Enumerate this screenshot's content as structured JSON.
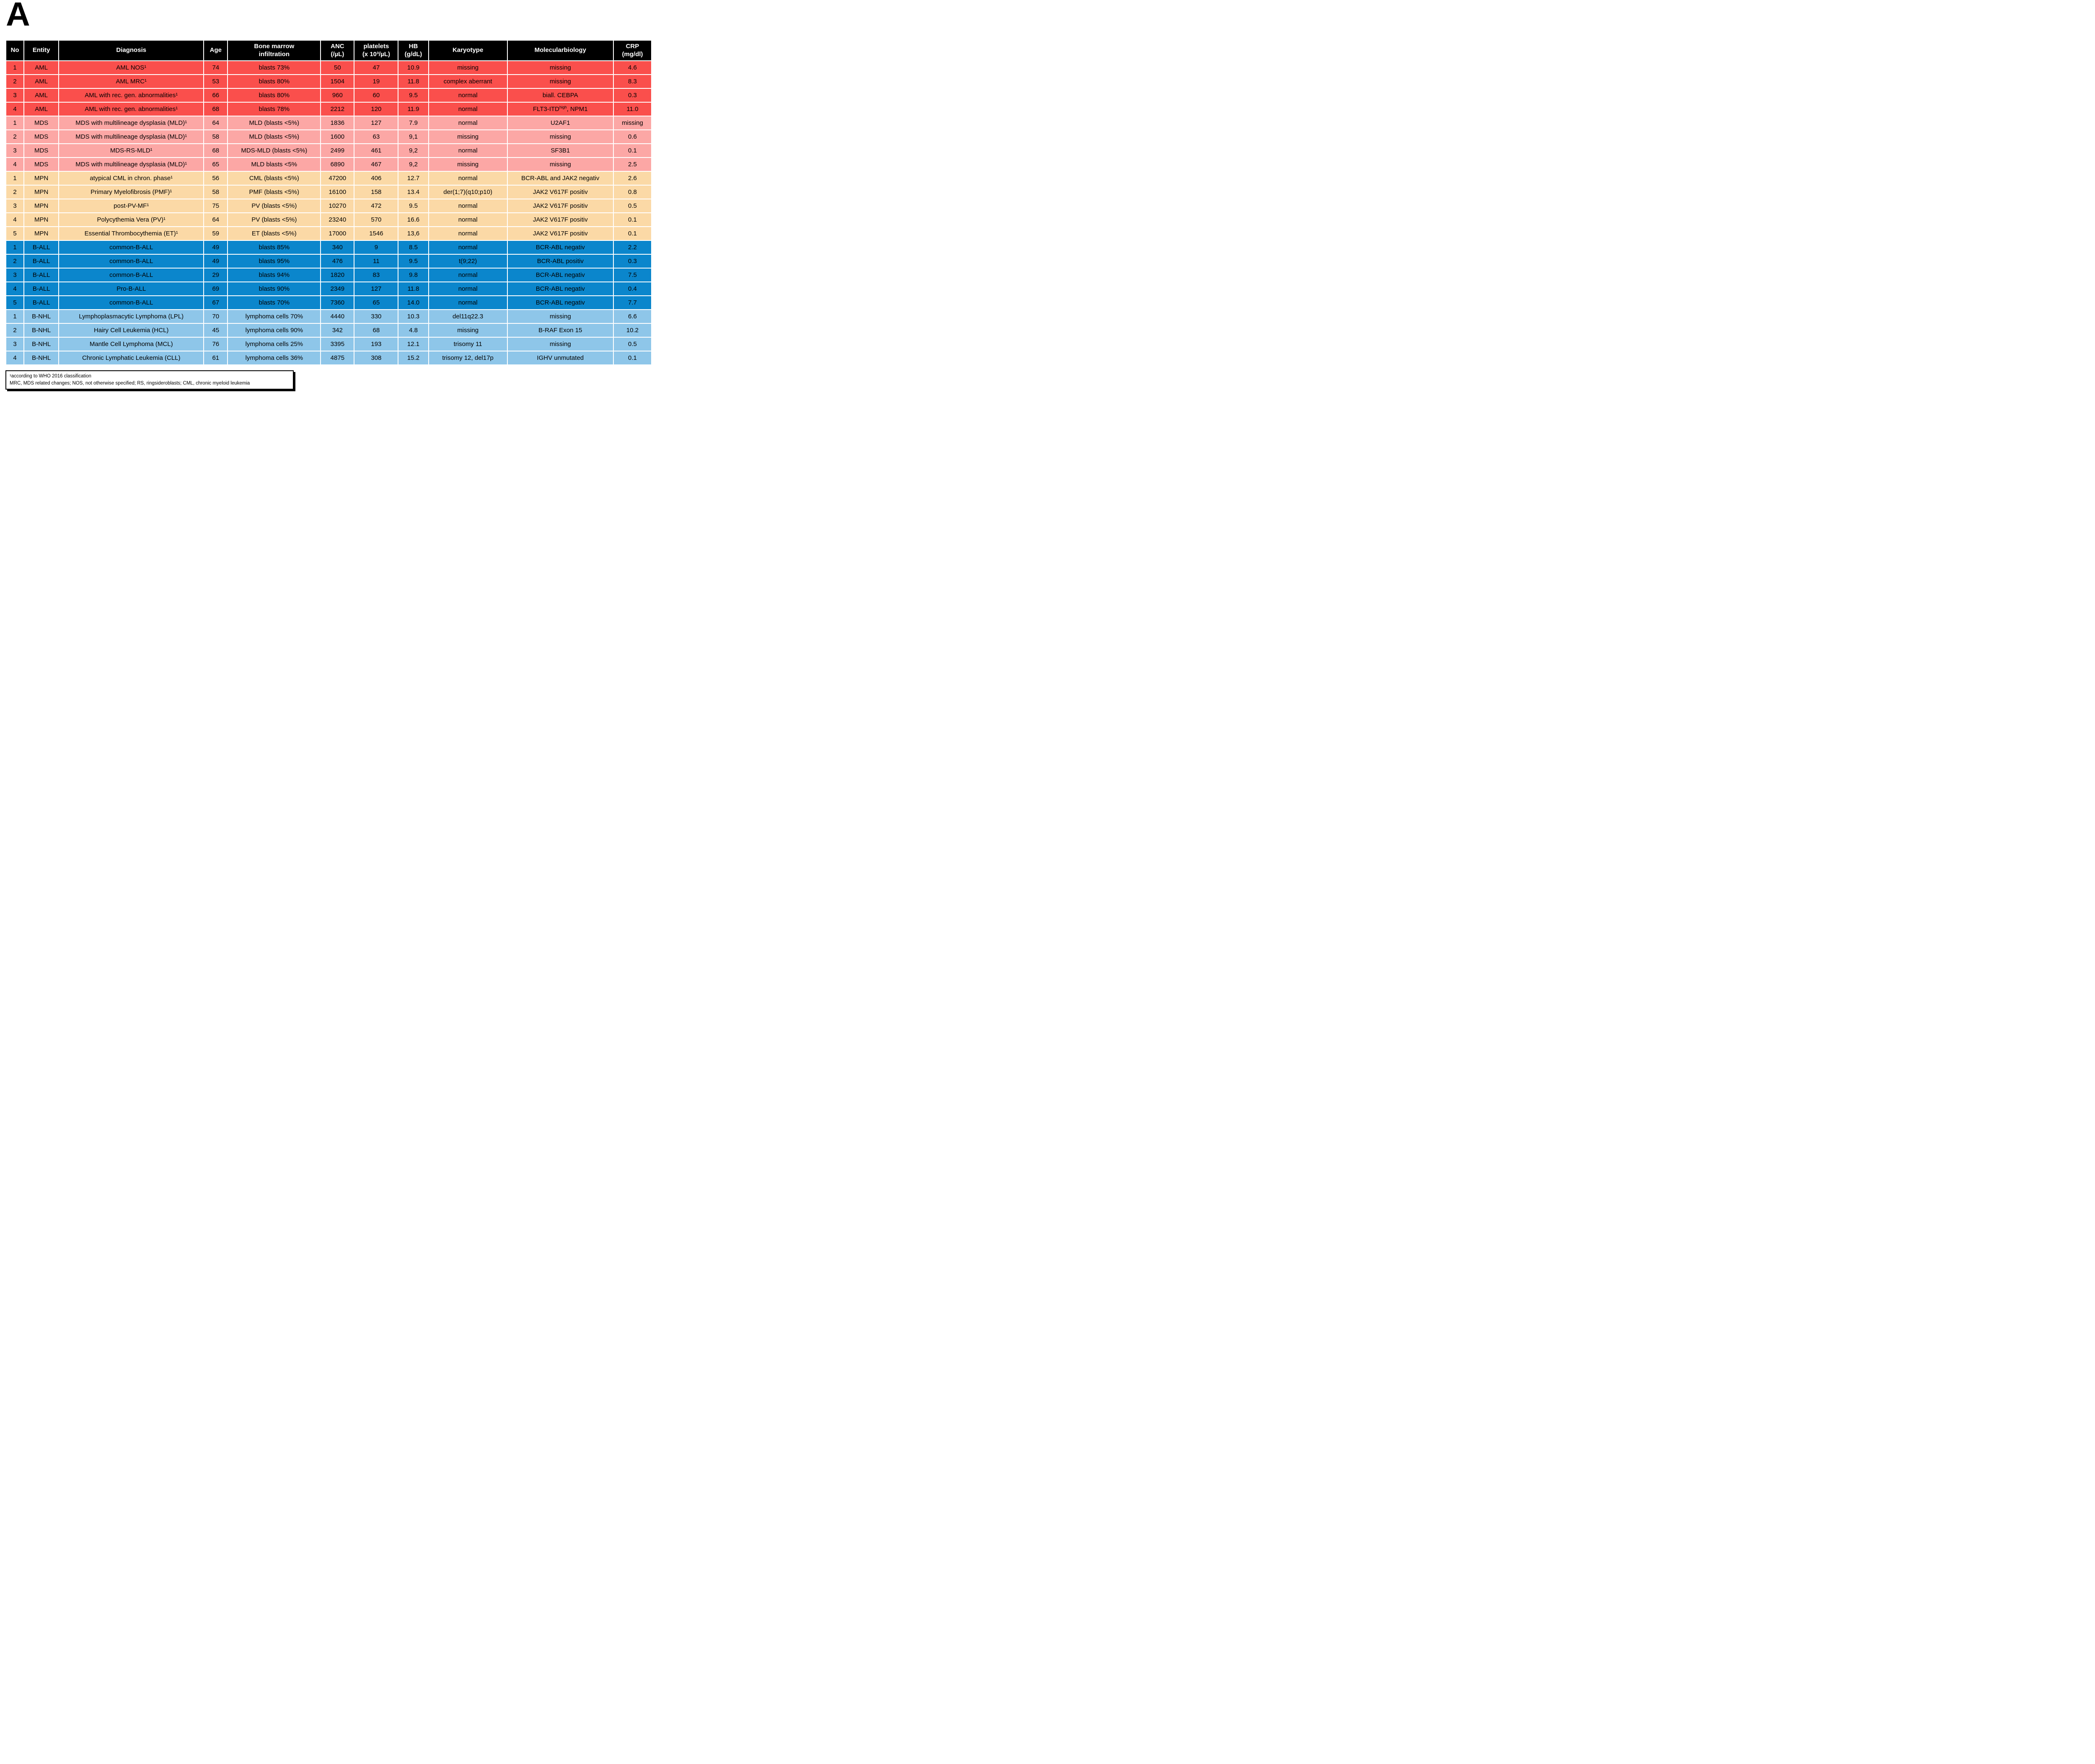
{
  "panel_label": "A",
  "colors": {
    "header_bg": "#000000",
    "header_text": "#ffffff",
    "grid": "#ffffff",
    "groups": {
      "AML": "#fa4f4c",
      "MDS": "#fca7a5",
      "MPN": "#fbd9a6",
      "B-ALL": "#0b86cc",
      "B-NHL": "#8ec6e9"
    }
  },
  "table": {
    "columns": [
      {
        "id": "no",
        "line1": "No",
        "line2": ""
      },
      {
        "id": "entity",
        "line1": "Entity",
        "line2": ""
      },
      {
        "id": "diagnosis",
        "line1": "Diagnosis",
        "line2": ""
      },
      {
        "id": "age",
        "line1": "Age",
        "line2": ""
      },
      {
        "id": "bm",
        "line1": "Bone marrow",
        "line2": "infiltration"
      },
      {
        "id": "anc",
        "line1": "ANC",
        "line2": "(/µL)"
      },
      {
        "id": "plt",
        "line1": "platelets",
        "line2": "(x 10³/µL)"
      },
      {
        "id": "hb",
        "line1": "HB",
        "line2": "(g/dL)"
      },
      {
        "id": "karyotype",
        "line1": "Karyotype",
        "line2": ""
      },
      {
        "id": "molecular",
        "line1": "Molecularbiology",
        "line2": ""
      },
      {
        "id": "crp",
        "line1": "CRP",
        "line2": "(mg/dl)"
      }
    ],
    "rows": [
      {
        "group": "AML",
        "no": "1",
        "entity": "AML",
        "diagnosis": "AML NOS¹",
        "age": "74",
        "bm": "blasts 73%",
        "anc": "50",
        "plt": "47",
        "hb": "10.9",
        "karyotype": "missing",
        "molecular": "missing",
        "crp": "4.6"
      },
      {
        "group": "AML",
        "no": "2",
        "entity": "AML",
        "diagnosis": "AML MRC¹",
        "age": "53",
        "bm": "blasts 80%",
        "anc": "1504",
        "plt": "19",
        "hb": "11.8",
        "karyotype": "complex aberrant",
        "molecular": "missing",
        "crp": "8.3"
      },
      {
        "group": "AML",
        "no": "3",
        "entity": "AML",
        "diagnosis": "AML with rec. gen. abnormalities¹",
        "age": "66",
        "bm": "blasts 80%",
        "anc": "960",
        "plt": "60",
        "hb": "9.5",
        "karyotype": "normal",
        "molecular": "biall. CEBPA",
        "crp": "0.3"
      },
      {
        "group": "AML",
        "no": "4",
        "entity": "AML",
        "diagnosis": "AML with rec. gen. abnormalities¹",
        "age": "68",
        "bm": "blasts 78%",
        "anc": "2212",
        "plt": "120",
        "hb": "11.9",
        "karyotype": "normal",
        "molecular": "FLT3-ITD^{high}, NPM1",
        "crp": "11.0"
      },
      {
        "group": "MDS",
        "no": "1",
        "entity": "MDS",
        "diagnosis": "MDS with multilineage dysplasia (MLD)¹",
        "age": "64",
        "bm": "MLD (blasts <5%)",
        "anc": "1836",
        "plt": "127",
        "hb": "7.9",
        "karyotype": "normal",
        "molecular": "U2AF1",
        "crp": "missing"
      },
      {
        "group": "MDS",
        "no": "2",
        "entity": "MDS",
        "diagnosis": "MDS with multilineage dysplasia (MLD)¹",
        "age": "58",
        "bm": "MLD (blasts <5%)",
        "anc": "1600",
        "plt": "63",
        "hb": "9,1",
        "karyotype": "missing",
        "molecular": "missing",
        "crp": "0.6"
      },
      {
        "group": "MDS",
        "no": "3",
        "entity": "MDS",
        "diagnosis": "MDS-RS-MLD¹",
        "age": "68",
        "bm": "MDS-MLD (blasts <5%)",
        "anc": "2499",
        "plt": "461",
        "hb": "9,2",
        "karyotype": "normal",
        "molecular": "SF3B1",
        "crp": "0.1"
      },
      {
        "group": "MDS",
        "no": "4",
        "entity": "MDS",
        "diagnosis": "MDS with multilineage dysplasia (MLD)¹",
        "age": "65",
        "bm": "MLD blasts <5%",
        "anc": "6890",
        "plt": "467",
        "hb": "9,2",
        "karyotype": "missing",
        "molecular": "missing",
        "crp": "2.5"
      },
      {
        "group": "MPN",
        "no": "1",
        "entity": "MPN",
        "diagnosis": "atypical CML in chron. phase¹",
        "age": "56",
        "bm": "CML (blasts <5%)",
        "anc": "47200",
        "plt": "406",
        "hb": "12.7",
        "karyotype": "normal",
        "molecular": "BCR-ABL and JAK2 negativ",
        "crp": "2.6"
      },
      {
        "group": "MPN",
        "no": "2",
        "entity": "MPN",
        "diagnosis": "Primary Myelofibrosis (PMF)¹",
        "age": "58",
        "bm": "PMF (blasts <5%)",
        "anc": "16100",
        "plt": "158",
        "hb": "13.4",
        "karyotype": "der(1;7)(q10;p10)",
        "molecular": "JAK2 V617F positiv",
        "crp": "0.8"
      },
      {
        "group": "MPN",
        "no": "3",
        "entity": "MPN",
        "diagnosis": "post-PV-MF¹",
        "age": "75",
        "bm": "PV (blasts <5%)",
        "anc": "10270",
        "plt": "472",
        "hb": "9.5",
        "karyotype": "normal",
        "molecular": "JAK2 V617F positiv",
        "crp": "0.5"
      },
      {
        "group": "MPN",
        "no": "4",
        "entity": "MPN",
        "diagnosis": "Polycythemia Vera (PV)¹",
        "age": "64",
        "bm": "PV (blasts <5%)",
        "anc": "23240",
        "plt": "570",
        "hb": "16.6",
        "karyotype": "normal",
        "molecular": "JAK2 V617F positiv",
        "crp": "0.1"
      },
      {
        "group": "MPN",
        "no": "5",
        "entity": "MPN",
        "diagnosis": "Essential Thrombocythemia (ET)¹",
        "age": "59",
        "bm": "ET (blasts <5%)",
        "anc": "17000",
        "plt": "1546",
        "hb": "13,6",
        "karyotype": "normal",
        "molecular": "JAK2 V617F positiv",
        "crp": "0.1"
      },
      {
        "group": "B-ALL",
        "no": "1",
        "entity": "B-ALL",
        "diagnosis": "common-B-ALL",
        "age": "49",
        "bm": "blasts 85%",
        "anc": "340",
        "plt": "9",
        "hb": "8.5",
        "karyotype": "normal",
        "molecular": "BCR-ABL negativ",
        "crp": "2.2"
      },
      {
        "group": "B-ALL",
        "no": "2",
        "entity": "B-ALL",
        "diagnosis": "common-B-ALL",
        "age": "49",
        "bm": "blasts 95%",
        "anc": "476",
        "plt": "11",
        "hb": "9.5",
        "karyotype": "t(9;22)",
        "molecular": "BCR-ABL positiv",
        "crp": "0.3"
      },
      {
        "group": "B-ALL",
        "no": "3",
        "entity": "B-ALL",
        "diagnosis": "common-B-ALL",
        "age": "29",
        "bm": "blasts 94%",
        "anc": "1820",
        "plt": "83",
        "hb": "9.8",
        "karyotype": "normal",
        "molecular": "BCR-ABL negativ",
        "crp": "7.5"
      },
      {
        "group": "B-ALL",
        "no": "4",
        "entity": "B-ALL",
        "diagnosis": "Pro-B-ALL",
        "age": "69",
        "bm": "blasts 90%",
        "anc": "2349",
        "plt": "127",
        "hb": "11.8",
        "karyotype": "normal",
        "molecular": "BCR-ABL negativ",
        "crp": "0.4"
      },
      {
        "group": "B-ALL",
        "no": "5",
        "entity": "B-ALL",
        "diagnosis": "common-B-ALL",
        "age": "67",
        "bm": "blasts 70%",
        "anc": "7360",
        "plt": "65",
        "hb": "14.0",
        "karyotype": "normal",
        "molecular": "BCR-ABL negativ",
        "crp": "7.7"
      },
      {
        "group": "B-NHL",
        "no": "1",
        "entity": "B-NHL",
        "diagnosis": "Lymphoplasmacytic Lymphoma (LPL)",
        "age": "70",
        "bm": "lymphoma cells 70%",
        "anc": "4440",
        "plt": "330",
        "hb": "10.3",
        "karyotype": "del11q22.3",
        "molecular": "missing",
        "crp": "6.6"
      },
      {
        "group": "B-NHL",
        "no": "2",
        "entity": "B-NHL",
        "diagnosis": "Hairy Cell Leukemia (HCL)",
        "age": "45",
        "bm": "lymphoma cells 90%",
        "anc": "342",
        "plt": "68",
        "hb": "4.8",
        "karyotype": "missing",
        "molecular": "B-RAF Exon 15",
        "crp": "10.2"
      },
      {
        "group": "B-NHL",
        "no": "3",
        "entity": "B-NHL",
        "diagnosis": "Mantle Cell Lymphoma (MCL)",
        "age": "76",
        "bm": "lymphoma cells 25%",
        "anc": "3395",
        "plt": "193",
        "hb": "12.1",
        "karyotype": "trisomy 11",
        "molecular": "missing",
        "crp": "0.5"
      },
      {
        "group": "B-NHL",
        "no": "4",
        "entity": "B-NHL",
        "diagnosis": "Chronic Lymphatic Leukemia (CLL)",
        "age": "61",
        "bm": "lymphoma cells 36%",
        "anc": "4875",
        "plt": "308",
        "hb": "15.2",
        "karyotype": "trisomy 12, del17p",
        "molecular": "IGHV unmutated",
        "crp": "0.1"
      }
    ]
  },
  "footnote": {
    "line1": "¹according to WHO 2016 classification",
    "line2": "MRC, MDS related changes; NOS, not otherwise specified; RS, ringsideroblasts; CML, chronic myeloid leukemia"
  }
}
